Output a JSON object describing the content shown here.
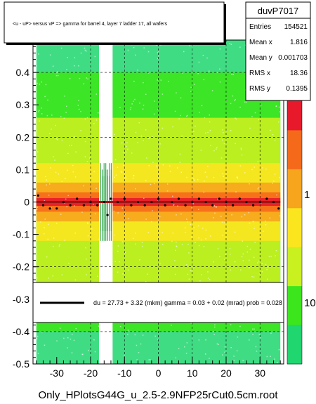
{
  "title_box": {
    "text": "<u - uP>       versus   vP =>  gamma for barrel 4, layer 7 ladder 17, all wafers"
  },
  "stats_box": {
    "name": "duvP7017",
    "rows": [
      {
        "label": "Entries",
        "value": "154521"
      },
      {
        "label": "Mean x",
        "value": "1.816"
      },
      {
        "label": "Mean y",
        "value": "0.001703"
      },
      {
        "label": "RMS x",
        "value": "18.36"
      },
      {
        "label": "RMS y",
        "value": "0.1395"
      }
    ]
  },
  "fit_legend": {
    "text": "du =    27.73 +   3.32 (mkm) gamma =     0.03 +   0.02 (mrad) prob = 0.028"
  },
  "footer": {
    "filename": "Only_HPlotsG44G_u_2.5-2.9NFP25rCut0.5cm.root"
  },
  "colorbar": {
    "tick_labels": [
      "1",
      "10"
    ],
    "colors": [
      "#e8192b",
      "#f56a1a",
      "#f7a51d",
      "#fbe51f",
      "#c9f01f",
      "#3ce61c",
      "#1fd66f"
    ]
  },
  "chart_data": {
    "type": "heatmap",
    "xlim": [
      -37,
      37
    ],
    "ylim": [
      -0.5,
      0.5
    ],
    "x_ticks": [
      -30,
      -20,
      -10,
      0,
      10,
      20,
      30
    ],
    "y_ticks": [
      -0.5,
      -0.4,
      -0.3,
      -0.2,
      -0.1,
      0,
      0.1,
      0.2,
      0.3,
      0.4
    ],
    "y_tick_labels": [
      "-0.5",
      "-0.4",
      "-0.3",
      "-0.2",
      "-0.1",
      "0",
      "0.1",
      "0.2",
      "0.3",
      "0.4"
    ],
    "x_tick_labels": [
      "-30",
      "-20",
      "-10",
      "0",
      "10",
      "20",
      "30"
    ],
    "occupied_x_range": [
      -36,
      36
    ],
    "gap_x_range": [
      -17.5,
      -13.5
    ],
    "fit_line": {
      "y": 0.0,
      "color": "#000000"
    },
    "profile_points": [
      {
        "x": -35.5,
        "y": 0.02
      },
      {
        "x": -34,
        "y": -0.01
      },
      {
        "x": -32,
        "y": -0.02
      },
      {
        "x": -30,
        "y": -0.02
      },
      {
        "x": -28,
        "y": 0.0
      },
      {
        "x": -26,
        "y": -0.01
      },
      {
        "x": -24,
        "y": 0.01
      },
      {
        "x": -22,
        "y": -0.01
      },
      {
        "x": -20,
        "y": 0.0
      },
      {
        "x": -18,
        "y": -0.01
      },
      {
        "x": -16,
        "y": 0.0
      },
      {
        "x": -15,
        "y": -0.04
      },
      {
        "x": -14,
        "y": 0.01
      },
      {
        "x": -12,
        "y": 0.0
      },
      {
        "x": -10,
        "y": 0.01
      },
      {
        "x": -8,
        "y": -0.01
      },
      {
        "x": -6,
        "y": 0.0
      },
      {
        "x": -4,
        "y": -0.01
      },
      {
        "x": -2,
        "y": 0.0
      },
      {
        "x": 0,
        "y": 0.01
      },
      {
        "x": 2,
        "y": -0.01
      },
      {
        "x": 4,
        "y": 0.0
      },
      {
        "x": 6,
        "y": 0.01
      },
      {
        "x": 8,
        "y": -0.01
      },
      {
        "x": 10,
        "y": 0.0
      },
      {
        "x": 12,
        "y": 0.01
      },
      {
        "x": 14,
        "y": 0.0
      },
      {
        "x": 16,
        "y": -0.01
      },
      {
        "x": 18,
        "y": 0.01
      },
      {
        "x": 20,
        "y": 0.0
      },
      {
        "x": 22,
        "y": -0.01
      },
      {
        "x": 24,
        "y": 0.01
      },
      {
        "x": 26,
        "y": 0.0
      },
      {
        "x": 28,
        "y": -0.01
      },
      {
        "x": 30,
        "y": 0.0
      },
      {
        "x": 32,
        "y": 0.01
      },
      {
        "x": 34,
        "y": 0.0
      },
      {
        "x": 35.5,
        "y": -0.02
      }
    ],
    "dashed_grid_y": [
      -0.4,
      -0.2,
      0.2,
      0.4
    ],
    "dashed_grid_x": [
      -20,
      -10,
      0,
      10,
      20,
      30
    ]
  }
}
